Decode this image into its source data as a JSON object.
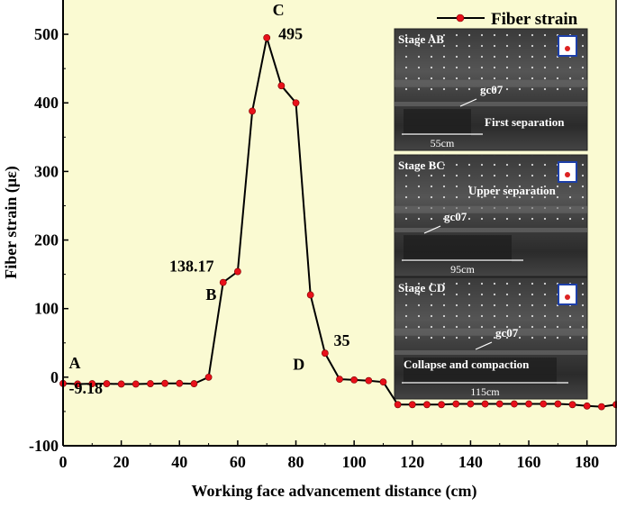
{
  "chart_data": {
    "type": "line",
    "title": "",
    "xlabel": "Working face advancement distance (cm)",
    "ylabel": "Fiber strain (με)",
    "xlim": [
      0,
      190
    ],
    "ylim": [
      -100,
      550
    ],
    "x_ticks": [
      0,
      20,
      40,
      60,
      80,
      100,
      120,
      140,
      160,
      180
    ],
    "x_tick_labels": [
      "0",
      "20",
      "40",
      "60",
      "80",
      "100",
      "120",
      "140",
      "160",
      "180"
    ],
    "y_ticks": [
      -100,
      0,
      100,
      200,
      300,
      400,
      500
    ],
    "y_tick_labels": [
      "-100",
      "0",
      "100",
      "200",
      "300",
      "400",
      "500"
    ],
    "grid": false,
    "legend": {
      "position": "top-right",
      "entries": [
        "Fiber strain"
      ]
    },
    "background_color": "#fafad2",
    "series": [
      {
        "name": "Fiber strain",
        "color": "#000000",
        "marker_color": "#e8101a",
        "x": [
          0,
          5,
          10,
          15,
          20,
          25,
          30,
          35,
          40,
          45,
          50,
          55,
          60,
          65,
          70,
          75,
          80,
          85,
          90,
          95,
          100,
          105,
          110,
          115,
          120,
          125,
          130,
          135,
          140,
          145,
          150,
          155,
          160,
          165,
          170,
          175,
          180,
          185,
          190
        ],
        "y": [
          -9.18,
          -10,
          -9.5,
          -9.5,
          -10,
          -10,
          -9.5,
          -9,
          -9,
          -9.5,
          0,
          138.17,
          154,
          388,
          495,
          425,
          400,
          120,
          35,
          -3,
          -4,
          -5,
          -7,
          -40,
          -40,
          -40,
          -40,
          -39,
          -39,
          -39,
          -39,
          -39,
          -39,
          -39,
          -39,
          -40,
          -42,
          -43,
          -40
        ]
      }
    ],
    "annotations": [
      {
        "text": "A",
        "x": 2,
        "y": 13
      },
      {
        "text": "-9.18",
        "x": 2,
        "y": -24
      },
      {
        "text": "B",
        "x": 49,
        "y": 113
      },
      {
        "text": "138.17",
        "x": 36.5,
        "y": 154
      },
      {
        "text": "C",
        "x": 72,
        "y": 528
      },
      {
        "text": "495",
        "x": 74,
        "y": 493
      },
      {
        "text": "D",
        "x": 79,
        "y": 11
      },
      {
        "text": "35",
        "x": 93,
        "y": 46
      }
    ],
    "inset_panels": [
      {
        "stage": "Stage AB",
        "point_label": "gc07",
        "note": "First separation",
        "scale": "55cm"
      },
      {
        "stage": "Stage BC",
        "point_label": "gc07",
        "note": "Upper separation",
        "scale": "95cm"
      },
      {
        "stage": "Stage CD",
        "point_label": "gc07",
        "note": "Collapse and compaction",
        "scale": "115cm"
      }
    ]
  }
}
